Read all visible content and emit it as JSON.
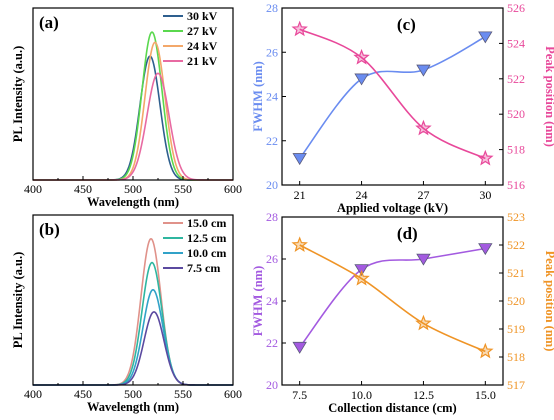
{
  "chart_data": [
    {
      "panel_label": "(a)",
      "type": "line",
      "xlabel": "Wavelength (nm)",
      "ylabel": "PL Intensity (a.u.)",
      "xlim": [
        400,
        600
      ],
      "xticks": [
        400,
        450,
        500,
        550,
        600
      ],
      "yticks_shown": false,
      "legend_position": "top-right",
      "series": [
        {
          "name": "30 kV",
          "color": "#2e5f8e",
          "peak_x": 517,
          "peak_y": 0.72,
          "width": 10
        },
        {
          "name": "27 kV",
          "color": "#5ad84e",
          "peak_x": 519,
          "peak_y": 0.86,
          "width": 10
        },
        {
          "name": "24 kV",
          "color": "#f3a86a",
          "peak_x": 522,
          "peak_y": 0.8,
          "width": 10
        },
        {
          "name": "21 kV",
          "color": "#e86aa2",
          "peak_x": 525,
          "peak_y": 0.62,
          "width": 11
        }
      ]
    },
    {
      "panel_label": "(b)",
      "type": "line",
      "xlabel": "Wavelength (nm)",
      "ylabel": "PL Intensity (a.u.)",
      "xlim": [
        400,
        600
      ],
      "xticks": [
        400,
        450,
        500,
        550,
        600
      ],
      "yticks_shown": false,
      "legend_position": "top-right",
      "series": [
        {
          "name": "15.0 cm",
          "color": "#e0928a",
          "peak_x": 518,
          "peak_y": 0.86,
          "width": 10
        },
        {
          "name": "12.5 cm",
          "color": "#2fb6a0",
          "peak_x": 519,
          "peak_y": 0.72,
          "width": 10
        },
        {
          "name": "10.0 cm",
          "color": "#31a2c8",
          "peak_x": 520,
          "peak_y": 0.56,
          "width": 10
        },
        {
          "name": "7.5 cm",
          "color": "#5b4aa0",
          "peak_x": 521,
          "peak_y": 0.43,
          "width": 10
        }
      ]
    },
    {
      "panel_label": "(c)",
      "type": "line",
      "xlabel": "Applied voltage (kV)",
      "ylabel": "FWHM (nm)",
      "ylabel_right": "Peak position (nm)",
      "categories": [
        "21",
        "24",
        "27",
        "30"
      ],
      "ylim": [
        20,
        28
      ],
      "yticks": [
        20,
        22,
        24,
        26,
        28
      ],
      "ylim_right": [
        516,
        526
      ],
      "yticks_right": [
        516,
        518,
        520,
        522,
        524,
        526
      ],
      "series": [
        {
          "name": "",
          "axis": "left",
          "marker": "triangle-down",
          "color": "#6a8cf0",
          "values": [
            21.2,
            24.8,
            25.2,
            26.7
          ]
        },
        {
          "name": "",
          "axis": "right",
          "marker": "star",
          "color": "#e8489a",
          "values": [
            524.8,
            523.2,
            519.2,
            517.5
          ]
        }
      ],
      "left_axis_color": "#6a8cf0",
      "right_axis_color": "#e8489a"
    },
    {
      "panel_label": "(d)",
      "type": "line",
      "xlabel": "Collection distance (cm)",
      "ylabel": "FWHM (nm)",
      "ylabel_right": "Peak position (nm)",
      "categories": [
        "7.5",
        "10.0",
        "12.5",
        "15.0"
      ],
      "ylim": [
        20,
        28
      ],
      "yticks": [
        20,
        22,
        24,
        26,
        28
      ],
      "ylim_right": [
        517,
        523
      ],
      "yticks_right": [
        517,
        518,
        519,
        520,
        521,
        522,
        523
      ],
      "series": [
        {
          "name": "",
          "axis": "left",
          "marker": "triangle-down",
          "color": "#a35ae0",
          "values": [
            21.8,
            25.5,
            26.0,
            26.5
          ]
        },
        {
          "name": "",
          "axis": "right",
          "marker": "star",
          "color": "#ef9426",
          "values": [
            522.0,
            520.8,
            519.2,
            518.2
          ]
        }
      ],
      "left_axis_color": "#a35ae0",
      "right_axis_color": "#ef9426"
    }
  ]
}
